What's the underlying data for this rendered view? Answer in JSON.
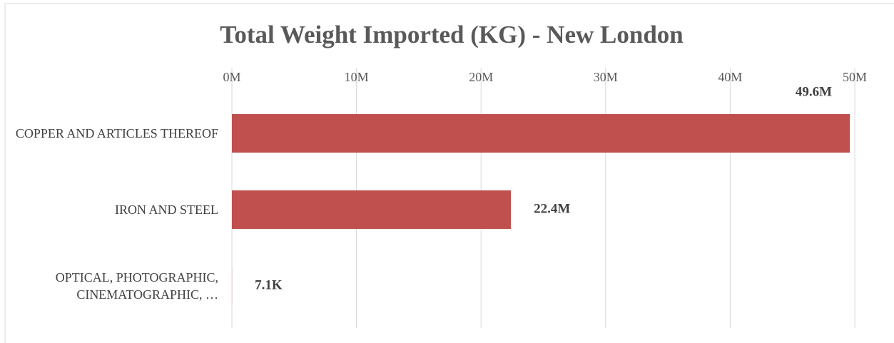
{
  "chart_data": {
    "type": "bar",
    "orientation": "horizontal",
    "title": "Total Weight Imported (KG) - New London",
    "categories": [
      "COPPER AND ARTICLES THEREOF",
      "IRON AND STEEL",
      "OPTICAL, PHOTOGRAPHIC, CINEMATOGRAPHIC, …"
    ],
    "values": [
      49600000,
      22400000,
      7100
    ],
    "value_labels": [
      "49.6M",
      "22.4M",
      "7.1K"
    ],
    "color": "#c0504d",
    "xlim": [
      0,
      50000000
    ],
    "xticks": [
      {
        "value": 0,
        "label": "0M"
      },
      {
        "value": 10000000,
        "label": "10M"
      },
      {
        "value": 20000000,
        "label": "20M"
      },
      {
        "value": 30000000,
        "label": "30M"
      },
      {
        "value": 40000000,
        "label": "40M"
      },
      {
        "value": 50000000,
        "label": "50M"
      }
    ],
    "grid": true
  }
}
